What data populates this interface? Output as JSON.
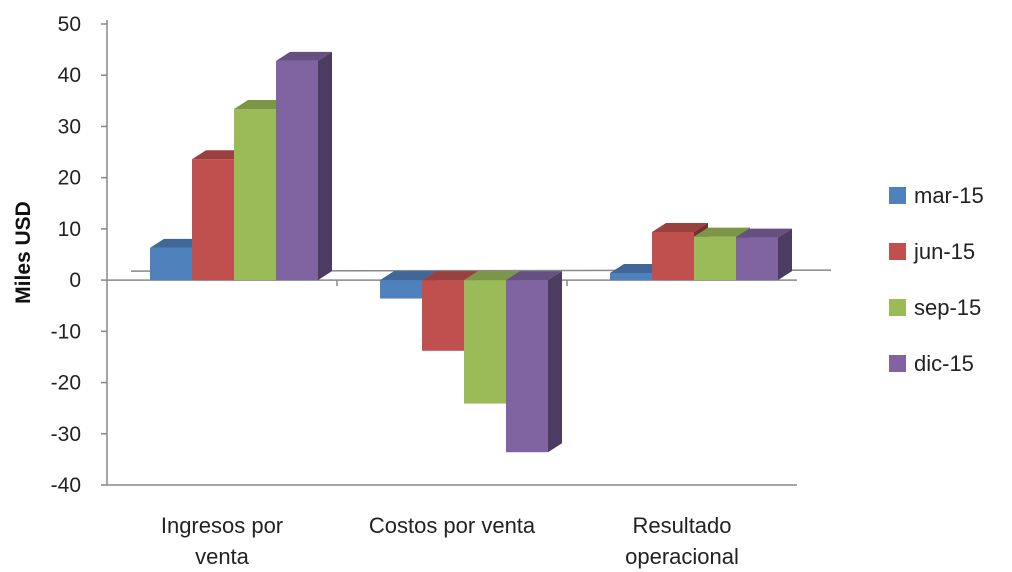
{
  "chart_data": {
    "type": "bar",
    "style": "3d-clustered-column",
    "ylabel": "Miles USD",
    "ylim": [
      -40,
      50
    ],
    "yticks": [
      50,
      40,
      30,
      20,
      10,
      0,
      -10,
      -20,
      -30,
      -40
    ],
    "categories": [
      [
        "Ingresos por",
        "venta"
      ],
      [
        "Costos por venta"
      ],
      [
        "Resultado",
        "operacional"
      ]
    ],
    "series": [
      {
        "name": "mar-15",
        "color": "#4F81BD",
        "values": [
          6.3,
          -3.6,
          1.4
        ]
      },
      {
        "name": "jun-15",
        "color": "#C0504D",
        "values": [
          23.6,
          -13.8,
          9.4
        ]
      },
      {
        "name": "sep-15",
        "color": "#9BBB59",
        "values": [
          33.4,
          -24.1,
          8.5
        ]
      },
      {
        "name": "dic-15",
        "color": "#8064A2",
        "values": [
          42.8,
          -33.6,
          8.3
        ]
      }
    ],
    "legend": "right",
    "grid": false
  }
}
